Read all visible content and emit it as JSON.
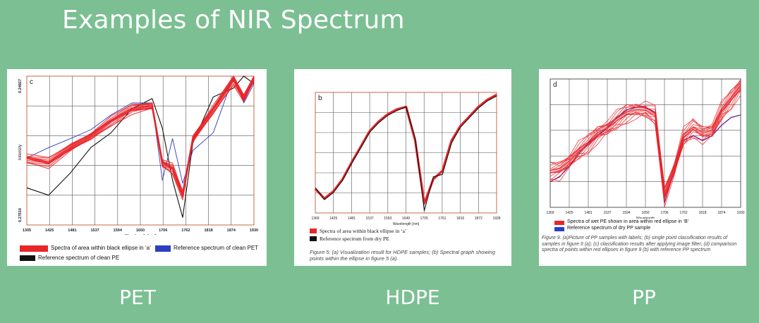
{
  "title": "Examples of NIR Spectrum",
  "captions": [
    "PET",
    "HDPE",
    "PP"
  ],
  "colors": {
    "background": "#7bbf93",
    "sample": "#e8262a",
    "reference": "#111111",
    "reference_blue": "#2b3fbf",
    "reference_purple": "#6b2a9a"
  },
  "pet": {
    "panel_label": "c",
    "ylabel": "Intensity",
    "y_top_tick": "0.24927",
    "y_bottom_tick": "0.27610",
    "xlabel": "Wavelength [nm]",
    "x_ticks": [
      "1305",
      "1425",
      "1481",
      "1537",
      "1594",
      "1650",
      "1706",
      "1762",
      "1818",
      "1874",
      "1930"
    ],
    "legend_sample": "Spectra of area within black ellipse in ‘a’",
    "legend_ref_blue": "Reference spectrum of clean PET",
    "legend_ref_black": "Reference spectrum of clean PE"
  },
  "hdpe": {
    "panel_label": "b",
    "xlabel": "Wavelength [nm]",
    "x_ticks": [
      "1369",
      "1425",
      "1481",
      "1537",
      "1593",
      "1649",
      "1705",
      "1761",
      "1816",
      "1872",
      "1928"
    ],
    "legend_sample": "Spectra of area within black ellipse in ‘a’",
    "legend_ref": "Reference spectrum from dry PE",
    "figure_caption": "Figure 5: (a) Visualization result for HDPE samples; (b) Spectral graph showing points within the ellipse in figure 5 (a)."
  },
  "pp": {
    "panel_label": "d",
    "xlabel": "Wavelength",
    "x_ticks": [
      "1369",
      "1425",
      "1481",
      "1537",
      "1594",
      "1650",
      "1706",
      "1762",
      "1818",
      "1874",
      "1930"
    ],
    "legend_sample": "Spectra of wet PE shown in area within red ellipse in ‘B’",
    "legend_ref": "Reference spectrum of dry PP sample",
    "figure_caption": "Figure 9. (a)Picture of PP samples with labels; (b) single point classification results of samples in figure 9 (a); (c) classification results after applying image filter; (d) comparison spectra of points within red ellipses in figure 9 (b) with reference PP spectrum"
  },
  "chart_data": [
    {
      "type": "line",
      "title": "",
      "xlabel": "Wavelength [nm]",
      "ylabel": "Intensity",
      "x": [
        1305,
        1365,
        1425,
        1481,
        1537,
        1594,
        1650,
        1678,
        1706,
        1734,
        1762,
        1818,
        1874,
        1902,
        1930
      ],
      "series": [
        {
          "name": "Spectra of area within black ellipse in ‘a’",
          "values": [
            0.45,
            0.42,
            0.52,
            0.6,
            0.7,
            0.78,
            0.8,
            0.42,
            0.38,
            0.2,
            0.58,
            0.78,
            0.98,
            0.85,
            0.99
          ]
        },
        {
          "name": "Reference spectrum of clean PET",
          "values": [
            0.45,
            0.52,
            0.58,
            0.64,
            0.74,
            0.82,
            0.82,
            0.3,
            0.58,
            0.28,
            0.5,
            0.62,
            1.0,
            0.82,
            0.95
          ]
        },
        {
          "name": "Reference spectrum of clean PE",
          "values": [
            0.25,
            0.2,
            0.35,
            0.52,
            0.62,
            0.78,
            0.85,
            0.65,
            0.3,
            0.05,
            0.55,
            0.86,
            0.92,
            1.0,
            0.95
          ]
        }
      ]
    },
    {
      "type": "line",
      "title": "",
      "xlabel": "Wavelength [nm]",
      "x": [
        1369,
        1397,
        1425,
        1453,
        1481,
        1509,
        1537,
        1565,
        1593,
        1621,
        1649,
        1677,
        1705,
        1733,
        1761,
        1789,
        1816,
        1844,
        1872,
        1900,
        1928
      ],
      "series": [
        {
          "name": "Spectra of area within black ellipse in ‘a’",
          "values": [
            0.2,
            0.12,
            0.18,
            0.28,
            0.42,
            0.55,
            0.68,
            0.76,
            0.82,
            0.86,
            0.88,
            0.6,
            0.08,
            0.28,
            0.35,
            0.6,
            0.72,
            0.8,
            0.88,
            0.94,
            0.98
          ]
        },
        {
          "name": "Reference spectrum from dry PE",
          "values": [
            0.21,
            0.11,
            0.17,
            0.27,
            0.41,
            0.54,
            0.67,
            0.75,
            0.81,
            0.85,
            0.88,
            0.62,
            0.02,
            0.3,
            0.32,
            0.58,
            0.71,
            0.79,
            0.87,
            0.93,
            0.97
          ]
        }
      ]
    },
    {
      "type": "line",
      "title": "",
      "xlabel": "Wavelength",
      "x": [
        1369,
        1397,
        1425,
        1453,
        1481,
        1509,
        1537,
        1565,
        1594,
        1622,
        1650,
        1678,
        1706,
        1734,
        1762,
        1790,
        1818,
        1846,
        1874,
        1902,
        1930
      ],
      "series": [
        {
          "name": "Spectra of wet PE shown in area within red ellipse in ‘B’",
          "values": [
            0.28,
            0.3,
            0.36,
            0.44,
            0.5,
            0.58,
            0.62,
            0.68,
            0.74,
            0.76,
            0.76,
            0.72,
            0.1,
            0.3,
            0.55,
            0.62,
            0.58,
            0.6,
            0.75,
            0.85,
            0.95
          ]
        },
        {
          "name": "Reference spectrum of dry PP sample",
          "values": [
            0.2,
            0.24,
            0.32,
            0.42,
            0.5,
            0.56,
            0.62,
            0.7,
            0.76,
            0.78,
            0.78,
            0.74,
            0.04,
            0.28,
            0.52,
            0.56,
            0.52,
            0.56,
            0.64,
            0.7,
            0.72
          ]
        }
      ]
    }
  ]
}
